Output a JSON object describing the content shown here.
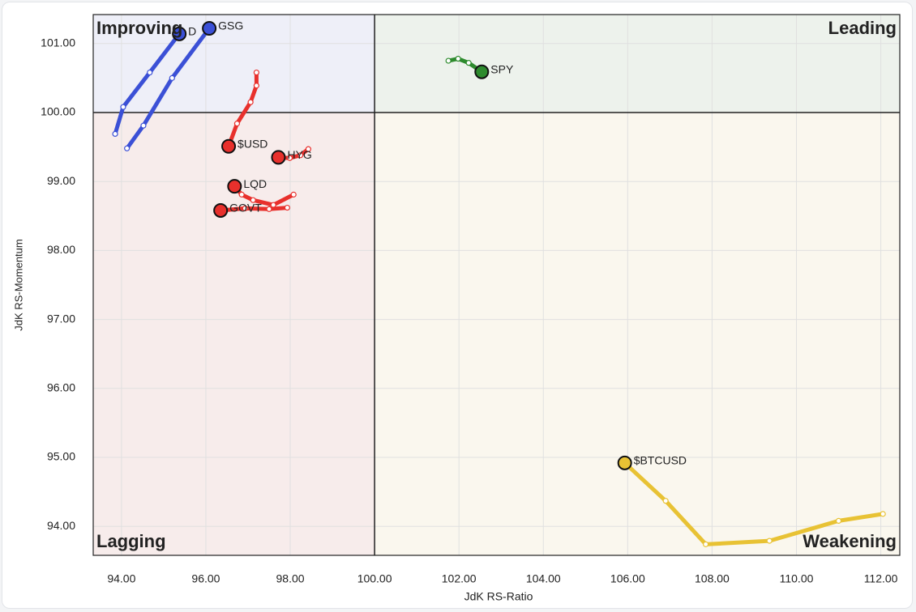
{
  "chart_data": {
    "type": "line",
    "xlabel": "JdK RS-Ratio",
    "ylabel": "JdK RS-Momentum",
    "xlim": [
      93.33,
      112.45
    ],
    "ylim": [
      93.58,
      101.42
    ],
    "xticks": [
      {
        "value": 94,
        "label": "94.00"
      },
      {
        "value": 96,
        "label": "96.00"
      },
      {
        "value": 98,
        "label": "98.00"
      },
      {
        "value": 100,
        "label": "100.00"
      },
      {
        "value": 102,
        "label": "102.00"
      },
      {
        "value": 104,
        "label": "104.00"
      },
      {
        "value": 106,
        "label": "106.00"
      },
      {
        "value": 108,
        "label": "108.00"
      },
      {
        "value": 110,
        "label": "110.00"
      },
      {
        "value": 112,
        "label": "112.00"
      }
    ],
    "yticks": [
      {
        "value": 94,
        "label": "94.00"
      },
      {
        "value": 95,
        "label": "95.00"
      },
      {
        "value": 96,
        "label": "96.00"
      },
      {
        "value": 97,
        "label": "97.00"
      },
      {
        "value": 98,
        "label": "98.00"
      },
      {
        "value": 99,
        "label": "99.00"
      },
      {
        "value": 100,
        "label": "100.00"
      },
      {
        "value": 101,
        "label": "101.00"
      }
    ],
    "grid": true,
    "reference": {
      "x": 100,
      "y": 100
    },
    "quadrants": [
      {
        "label": "Improving",
        "color": "#eeeff8",
        "text_color": "#7f8ee6",
        "corner": "top-left"
      },
      {
        "label": "Leading",
        "color": "#edf2ec",
        "text_color": "#7fb87f",
        "corner": "top-right"
      },
      {
        "label": "Lagging",
        "color": "#f7eceb",
        "text_color": "#e89a98",
        "corner": "bottom-left"
      },
      {
        "label": "Weakening",
        "color": "#faf7ee",
        "text_color": "#ecd47a",
        "corner": "bottom-right"
      }
    ],
    "series": [
      {
        "name": "GSG",
        "color": "#3b50d6",
        "x": [
          94.13,
          94.52,
          95.2,
          96.08
        ],
        "y": [
          99.48,
          99.81,
          100.5,
          101.22
        ]
      },
      {
        "name": "D",
        "color": "#3b50d6",
        "x": [
          93.85,
          94.04,
          94.67,
          95.37
        ],
        "y": [
          99.69,
          100.08,
          100.58,
          101.14
        ]
      },
      {
        "name": "$USD",
        "color": "#e8302c",
        "x": [
          97.2,
          97.2,
          97.06,
          96.74,
          96.54
        ],
        "y": [
          100.58,
          100.39,
          100.15,
          99.84,
          99.51
        ]
      },
      {
        "name": "HYG",
        "color": "#e8302c",
        "x": [
          98.43,
          98.24,
          97.99,
          97.72
        ],
        "y": [
          99.47,
          99.38,
          99.34,
          99.35
        ]
      },
      {
        "name": "LQD",
        "color": "#e8302c",
        "x": [
          98.08,
          97.6,
          97.12,
          96.85,
          96.68
        ],
        "y": [
          98.81,
          98.66,
          98.73,
          98.81,
          98.93
        ]
      },
      {
        "name": "GOVT",
        "color": "#e8302c",
        "x": [
          97.93,
          97.5,
          96.93,
          96.35
        ],
        "y": [
          98.62,
          98.6,
          98.61,
          98.58
        ]
      },
      {
        "name": "SPY",
        "color": "#2e8b2e",
        "x": [
          101.75,
          101.98,
          102.23,
          102.54
        ],
        "y": [
          100.75,
          100.78,
          100.72,
          100.59
        ]
      },
      {
        "name": "$BTCUSD",
        "color": "#e8c234",
        "x": [
          112.05,
          111.0,
          109.36,
          107.85,
          106.9,
          105.93
        ],
        "y": [
          94.18,
          94.08,
          93.79,
          93.74,
          94.37,
          94.92
        ]
      }
    ]
  }
}
